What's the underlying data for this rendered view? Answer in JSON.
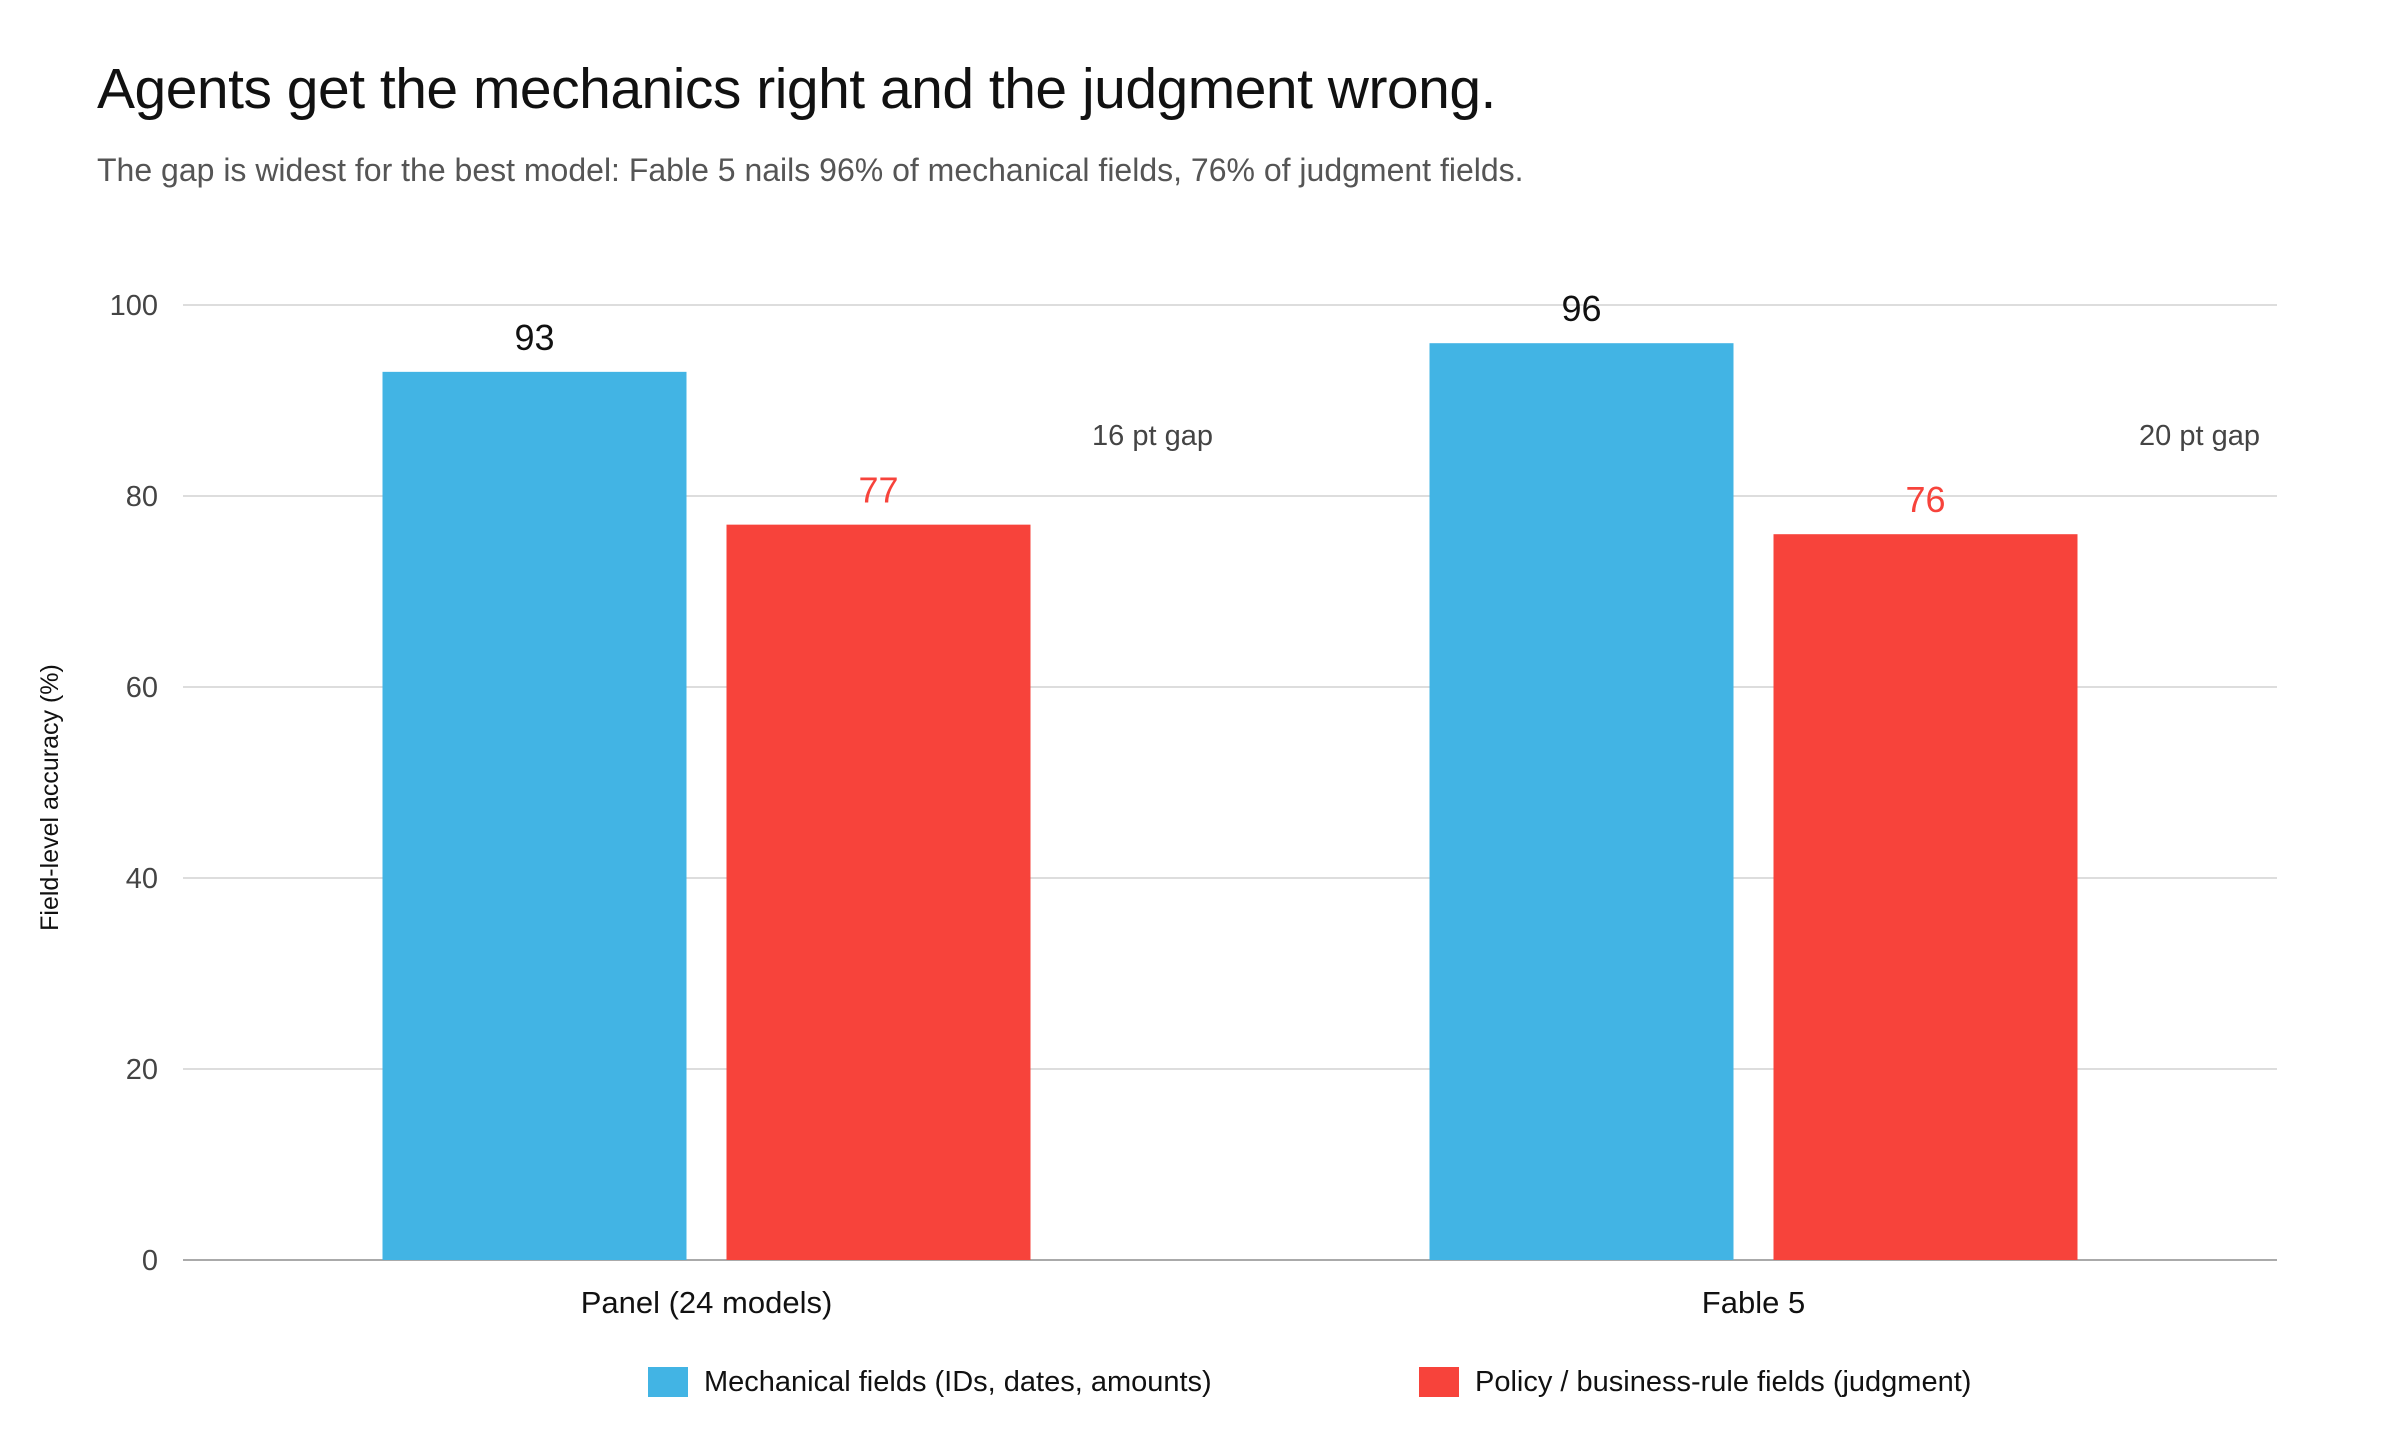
{
  "chart": {
    "title": "Agents get the mechanics right and the judgment wrong.",
    "subtitle": "The gap is widest for the best model: Fable 5 nails 96% of mechanical fields, 76% of judgment fields."
  },
  "chart_data": {
    "type": "bar",
    "title": "Agents get the mechanics right and the judgment wrong.",
    "subtitle": "The gap is widest for the best model: Fable 5 nails 96% of mechanical fields, 76% of judgment fields.",
    "xlabel": "",
    "ylabel": "Field-level accuracy (%)",
    "ylim": [
      0,
      100
    ],
    "yticks": [
      0,
      20,
      40,
      60,
      80,
      100
    ],
    "grid": true,
    "legend_position": "bottom",
    "categories": [
      "Panel (24 models)",
      "Fable 5"
    ],
    "series": [
      {
        "name": "Mechanical fields (IDs, dates, amounts)",
        "color": "#42b4e4",
        "label_color": "#111111",
        "values": [
          93,
          96
        ]
      },
      {
        "name": "Policy / business-rule fields (judgment)",
        "color": "#f7433b",
        "label_color": "#f7433b",
        "values": [
          77,
          76
        ]
      }
    ],
    "annotations": [
      "16 pt gap",
      "20 pt gap"
    ]
  }
}
